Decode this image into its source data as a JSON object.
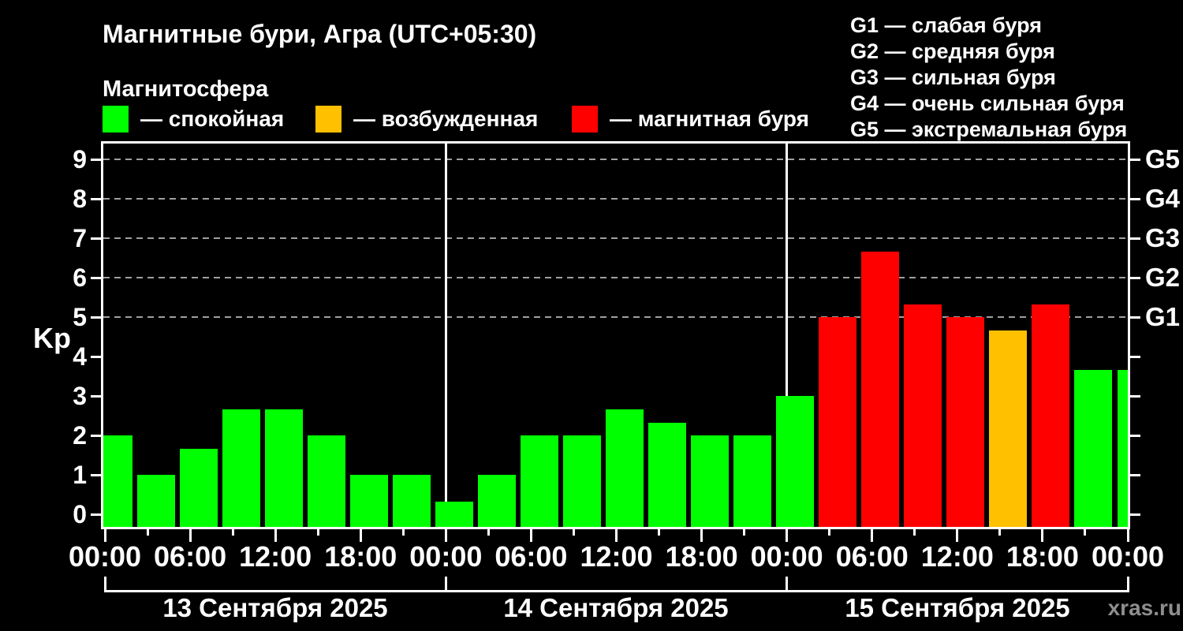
{
  "title": "Магнитные бури, Агра (UTC+05:30)",
  "subtitle": "Магнитосфера",
  "watermark": "xras.ru",
  "colors": {
    "quiet": "#00ff00",
    "excited": "#ffc000",
    "storm": "#ff0000",
    "axis": "#ffffff",
    "grid": "#a0a0a0",
    "background": "#000000",
    "watermark_color": "#8e8e8e"
  },
  "legend": {
    "items": [
      {
        "level": "quiet",
        "label": "— спокойная"
      },
      {
        "level": "excited",
        "label": "— возбужденная"
      },
      {
        "level": "storm",
        "label": "— магнитная буря"
      }
    ]
  },
  "g_legend": [
    {
      "label": "G1 — слабая буря"
    },
    {
      "label": "G2 — средняя буря"
    },
    {
      "label": "G3 — сильная буря"
    },
    {
      "label": "G4 — очень сильная буря"
    },
    {
      "label": "G5 — экстремальная буря"
    }
  ],
  "chart_data": {
    "type": "bar",
    "title": "Магнитные бури, Агра (UTC+05:30)",
    "ylabel": "Kp",
    "xlabel": "",
    "ylim": [
      0,
      9.4
    ],
    "yticks": [
      0,
      1,
      2,
      3,
      4,
      5,
      6,
      7,
      8,
      9
    ],
    "gridlines_kp": [
      5,
      6,
      7,
      8,
      9
    ],
    "grid": "dashed horizontal lines at Kp 5-9 only (G1-G5 storm levels)",
    "legend_position": "top",
    "bar_interval_hours": 3,
    "x_tick_labels": [
      "00:00",
      "06:00",
      "12:00",
      "18:00",
      "00:00",
      "06:00",
      "12:00",
      "18:00",
      "00:00",
      "06:00",
      "12:00",
      "18:00",
      "00:00"
    ],
    "right_axis": [
      {
        "label": "G5",
        "kp": 9
      },
      {
        "label": "G4",
        "kp": 8
      },
      {
        "label": "G3",
        "kp": 7
      },
      {
        "label": "G2",
        "kp": 6
      },
      {
        "label": "G1",
        "kp": 5
      }
    ],
    "days": [
      {
        "date": "13 Сентября 2025",
        "values": [
          2,
          1,
          1.67,
          2.67,
          2.67,
          2,
          1,
          1
        ],
        "levels": [
          "quiet",
          "quiet",
          "quiet",
          "quiet",
          "quiet",
          "quiet",
          "quiet",
          "quiet"
        ]
      },
      {
        "date": "14 Сентября 2025",
        "values": [
          0.33,
          1,
          2,
          2,
          2.67,
          2.33,
          2,
          2
        ],
        "levels": [
          "quiet",
          "quiet",
          "quiet",
          "quiet",
          "quiet",
          "quiet",
          "quiet",
          "quiet"
        ]
      },
      {
        "date": "15 Сентября 2025",
        "values": [
          3,
          5,
          6.67,
          5.33,
          5,
          4.67,
          5.33,
          3.67
        ],
        "levels": [
          "quiet",
          "storm",
          "storm",
          "storm",
          "storm",
          "excited",
          "storm",
          "quiet"
        ]
      }
    ],
    "next_day_partial_bar": {
      "value": 3.67,
      "level": "quiet"
    }
  }
}
